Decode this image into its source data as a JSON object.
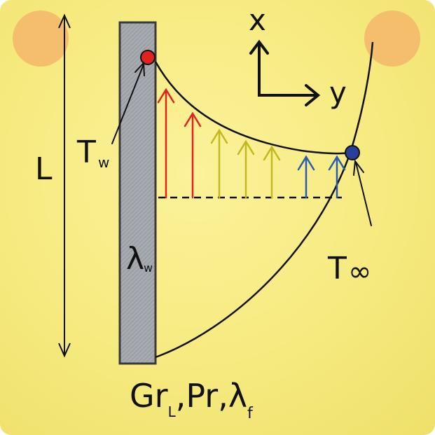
{
  "axes": {
    "x_label": "x",
    "y_label": "y"
  },
  "wall": {
    "length_label": "L",
    "temp_symbol": "T",
    "temp_subscript": "w",
    "conductivity_symbol": "λ",
    "conductivity_subscript": "w"
  },
  "ambient": {
    "temp_symbol": "T",
    "temp_subscript": "∞"
  },
  "parameters": {
    "grashof": "Gr",
    "grashof_subscript": "L",
    "separator_1": ",",
    "prandtl": "Pr",
    "separator_2": ",",
    "fluid_conductivity": "λ",
    "fluid_conductivity_subscript": "f"
  },
  "colors": {
    "background": "#f6ea7f",
    "corner_circle": "#f5b66a",
    "wall_fill": "#a7abb0",
    "hot_dot": "#e0231e",
    "cold_dot": "#2a3f9c",
    "arrow_hot": "#e0231e",
    "arrow_mid": "#c2b820",
    "arrow_cold": "#2a5bb0"
  }
}
